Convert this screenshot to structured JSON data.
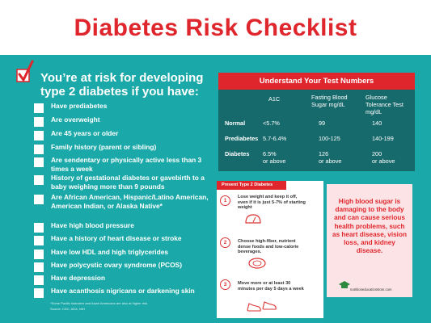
{
  "title": "Diabetes Risk Checklist",
  "colors": {
    "accent_red": "#e0262d",
    "teal": "#1aa9a8",
    "dark_teal": "#176a6c",
    "pink": "#fce4e6"
  },
  "intro": "You’re at risk for developing type 2 diabetes if you have:",
  "checklist": [
    "Have prediabetes",
    "Are overweight",
    "Are 45 years or older",
    "Family history (parent or sibling)",
    "Are sendentary or physically active less than 3 times a week",
    "History of gestational diabetes or gavebirth to a baby weighing more than 9 pounds",
    "Are African American, Hispanic/Latino American, American Indian, or Alaska Native*",
    "Have high blood pressure",
    "Have a history of heart disease or stroke",
    "Have low HDL and high triglycerides",
    "Have  polycystic ovary syndrome (PCOS)",
    "Have depression",
    "Have acanthosis nigricans or darkening skin"
  ],
  "footnote": "*Some Pacific Islanders and Asian Americans are also at higher risk.",
  "source": "Source: CDC, ADA, NIH",
  "test_table": {
    "title": "Understand Your Test Numbers",
    "col_a1c": "A1C",
    "col_fasting": "Fasting Blood Sugar mg/dL",
    "col_glucose": "Glucose Tolerance Test mg/dL",
    "rows": [
      {
        "label": "Normal",
        "a1c": "<5.7%",
        "fasting": "99",
        "glucose": "140"
      },
      {
        "label": "Prediabetes",
        "a1c": "5.7-6.4%",
        "fasting": "100-125",
        "glucose": "140-199"
      },
      {
        "label": "Diabetes",
        "a1c": "6.5%",
        "fasting": "126",
        "glucose": "200"
      }
    ],
    "or_above": "or above"
  },
  "prevent": {
    "title": "Prevent Type 2 Diabetes",
    "steps": [
      {
        "num": "1",
        "text": "Lose weight and keep it off, even if it is just 5-7% of starting weight"
      },
      {
        "num": "2",
        "text": "Choose high-fiber, nutrient dense foods and low-calorie beverages."
      },
      {
        "num": "3",
        "text": "Move more or at least 30 minutes per day 5 days a week"
      }
    ]
  },
  "warning": "High blood sugar is damaging to the body and can cause serious health problems, such as heart disease, vision loss, and kidney disease.",
  "brand": "nutritioneducationstore.com",
  "icons": [
    "checkmark-icon",
    "scale-icon",
    "plate-icon",
    "sneakers-icon",
    "graduation-cap-icon"
  ]
}
